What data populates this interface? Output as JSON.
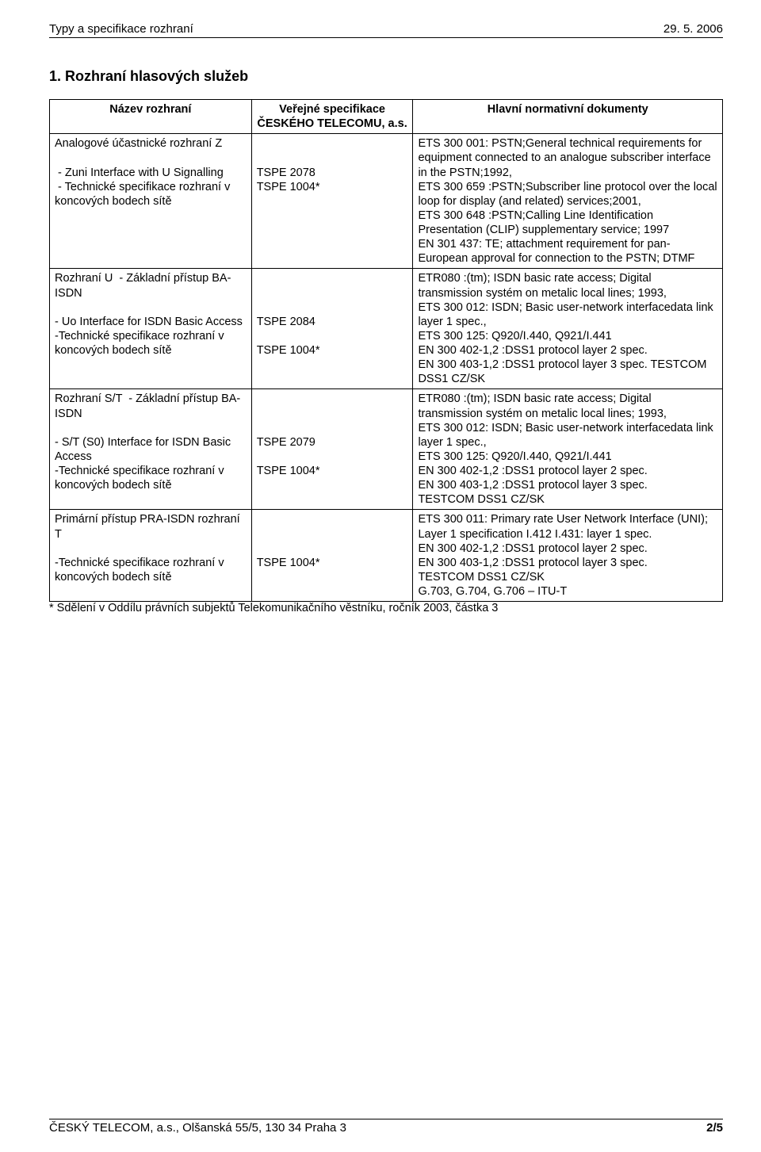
{
  "header": {
    "left": "Typy a specifikace rozhraní",
    "right": "29. 5. 2006"
  },
  "section_title": "1. Rozhraní hlasových služeb",
  "table": {
    "headers": [
      "Název rozhraní",
      "Veřejné specifikace ČESKÉHO TELECOMU, a.s.",
      "Hlavní normativní dokumenty"
    ],
    "rows": [
      {
        "c1": "Analogové účastnické rozhraní Z\n\n - Zuni Interface with U Signalling\n - Technické specifikace rozhraní v koncových bodech sítě",
        "c2": "\n\nTSPE 2078\nTSPE 1004*",
        "c3": "ETS 300 001: PSTN;General technical requirements for equipment connected to an analogue subscriber interface in the PSTN;1992,\nETS 300 659 :PSTN;Subscriber line protocol over the local loop for display (and related) services;2001,\nETS 300 648 :PSTN;Calling Line Identification Presentation (CLIP) supplementary service; 1997\nEN 301 437: TE; attachment requirement for pan-European approval for connection to the PSTN; DTMF"
      },
      {
        "c1": "Rozhraní U  - Základní přístup BA-ISDN\n\n- Uo Interface for ISDN Basic Access\n-Technické specifikace rozhraní v koncových bodech sítě",
        "c2": "\n\n\nTSPE 2084\n\nTSPE 1004*",
        "c3": "ETR080 :(tm); ISDN basic rate access; Digital transmission systém on metalic local lines; 1993,\nETS 300 012: ISDN; Basic user-network interfacedata link layer 1 spec.,\nETS 300 125: Q920/I.440, Q921/I.441\nEN 300 402-1,2 :DSS1 protocol layer 2 spec.\nEN 300 403-1,2 :DSS1 protocol layer 3 spec. TESTCOM DSS1 CZ/SK"
      },
      {
        "c1": "Rozhraní S/T  - Základní přístup BA-ISDN\n\n- S/T (S0) Interface for ISDN Basic Access\n-Technické specifikace rozhraní v koncových bodech sítě",
        "c2": "\n\n\nTSPE 2079\n\nTSPE 1004*",
        "c3": "ETR080 :(tm); ISDN basic rate access; Digital transmission systém on metalic local lines; 1993,\nETS 300 012: ISDN; Basic user-network interfacedata link layer 1 spec.,\nETS 300 125: Q920/I.440, Q921/I.441\nEN 300 402-1,2 :DSS1 protocol layer 2 spec.\nEN 300 403-1,2 :DSS1 protocol layer 3 spec.\nTESTCOM DSS1 CZ/SK"
      },
      {
        "c1": "Primární přístup PRA-ISDN rozhraní T\n\n-Technické specifikace rozhraní v koncových bodech sítě",
        "c2": "\n\n\nTSPE 1004*",
        "c3": "ETS 300 011: Primary rate User Network Interface (UNI); Layer 1 specification I.412 I.431: layer 1 spec.\nEN 300 402-1,2 :DSS1 protocol layer 2 spec.\nEN 300 403-1,2 :DSS1 protocol layer 3 spec.\nTESTCOM DSS1 CZ/SK\nG.703, G.704, G.706 – ITU-T"
      }
    ]
  },
  "footnote": "* Sdělení v Oddílu právních subjektů Telekomunikačního věstníku, ročník 2003, částka 3",
  "footer": {
    "left": "ČESKÝ TELECOM, a.s., Olšanská 55/5, 130 34 Praha 3",
    "right": "2/5"
  }
}
